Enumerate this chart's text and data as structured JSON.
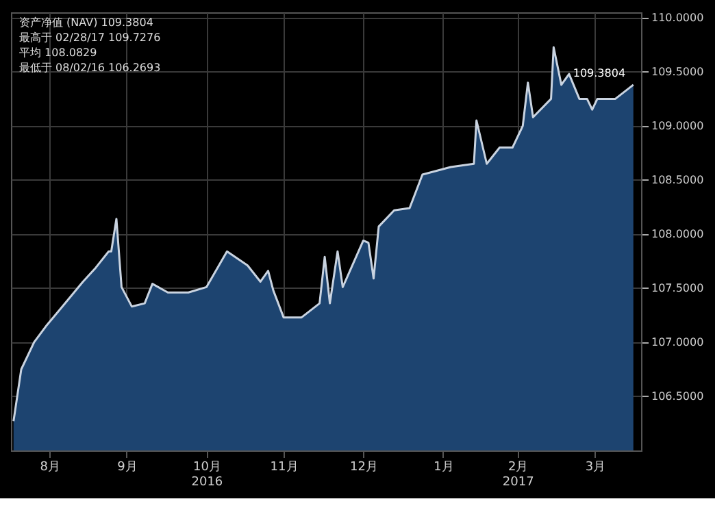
{
  "chart_data": {
    "type": "area",
    "x": [
      "2016-08-02",
      "2016-08-05",
      "2016-08-10",
      "2016-08-15",
      "2016-08-21",
      "2016-08-29",
      "2016-09-03",
      "2016-09-08",
      "2016-09-09",
      "2016-09-11",
      "2016-09-13",
      "2016-09-17",
      "2016-09-22",
      "2016-09-25",
      "2016-10-01",
      "2016-10-09",
      "2016-10-16",
      "2016-10-24",
      "2016-11-01",
      "2016-11-06",
      "2016-11-09",
      "2016-11-11",
      "2016-11-15",
      "2016-11-22",
      "2016-11-29",
      "2016-12-01",
      "2016-12-03",
      "2016-12-06",
      "2016-12-08",
      "2016-12-16",
      "2016-12-18",
      "2016-12-20",
      "2016-12-22",
      "2016-12-28",
      "2017-01-03",
      "2017-01-08",
      "2017-01-19",
      "2017-01-28",
      "2017-01-29",
      "2017-02-02",
      "2017-02-07",
      "2017-02-12",
      "2017-02-16",
      "2017-02-18",
      "2017-02-20",
      "2017-02-27",
      "2017-02-28",
      "2017-03-03",
      "2017-03-06",
      "2017-03-10",
      "2017-03-13",
      "2017-03-15",
      "2017-03-17",
      "2017-03-24",
      "2017-03-31"
    ],
    "series": [
      {
        "color": "#c9d3e0",
        "values": [
          106.27,
          106.75,
          107.0,
          107.16,
          107.33,
          107.56,
          107.69,
          107.84,
          107.84,
          108.14,
          107.51,
          107.33,
          107.36,
          107.54,
          107.46,
          107.46,
          107.51,
          107.84,
          107.71,
          107.56,
          107.66,
          107.48,
          107.23,
          107.23,
          107.36,
          107.79,
          107.36,
          107.84,
          107.51,
          107.94,
          107.92,
          107.59,
          108.07,
          108.22,
          108.24,
          108.55,
          108.62,
          108.65,
          109.05,
          108.65,
          108.8,
          108.8,
          109.0,
          109.4,
          109.08,
          109.25,
          109.7276,
          109.38,
          109.48,
          109.25,
          109.25,
          109.15,
          109.25,
          109.25,
          109.3804
        ]
      }
    ],
    "xlim": [
      "2016-08-01",
      "2017-04-03"
    ],
    "xticks": [
      {
        "value": "2016-08-16",
        "label": "8月"
      },
      {
        "value": "2016-09-15",
        "label": "9月"
      },
      {
        "value": "2016-10-16",
        "label": "10月\n2016"
      },
      {
        "value": "2016-11-15",
        "label": "11月"
      },
      {
        "value": "2016-12-16",
        "label": "12月"
      },
      {
        "value": "2017-01-16",
        "label": "1月"
      },
      {
        "value": "2017-02-14",
        "label": "2月\n2017"
      },
      {
        "value": "2017-03-16",
        "label": "3月"
      }
    ],
    "ylim": [
      106.0,
      110.05
    ],
    "yticks": [
      {
        "value": 106.5,
        "label": "106.5000"
      },
      {
        "value": 107.0,
        "label": "107.0000"
      },
      {
        "value": 107.5,
        "label": "107.5000"
      },
      {
        "value": 108.0,
        "label": "108.0000"
      },
      {
        "value": 108.5,
        "label": "108.5000"
      },
      {
        "value": 109.0,
        "label": "109.0000"
      },
      {
        "value": 109.5,
        "label": "109.5000"
      },
      {
        "value": 110.0,
        "label": "110.0000"
      }
    ],
    "grid": true,
    "annotations": [
      "资产净值 (NAV)  109.3804",
      "最高于 02/28/17  109.7276",
      "平均  108.0829",
      "最低于 08/02/16  106.2693",
      {
        "text": "109.3804",
        "x": "2017-03-31",
        "y": 109.3804
      }
    ]
  }
}
